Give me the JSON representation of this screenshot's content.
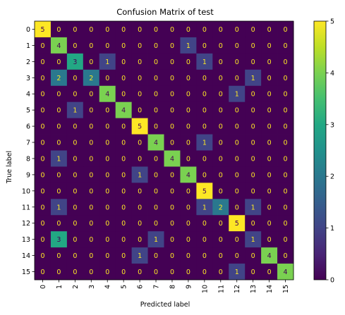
{
  "chart_data": {
    "type": "heatmap",
    "title": "Confusion Matrix of test",
    "xlabel": "Predicted label",
    "ylabel": "True label",
    "x_categories": [
      "0",
      "1",
      "2",
      "3",
      "4",
      "5",
      "6",
      "7",
      "8",
      "9",
      "10",
      "11",
      "12",
      "13",
      "14",
      "15"
    ],
    "y_categories": [
      "0",
      "1",
      "2",
      "3",
      "4",
      "5",
      "6",
      "7",
      "8",
      "9",
      "10",
      "11",
      "12",
      "13",
      "14",
      "15"
    ],
    "matrix": [
      [
        5,
        0,
        0,
        0,
        0,
        0,
        0,
        0,
        0,
        0,
        0,
        0,
        0,
        0,
        0,
        0
      ],
      [
        0,
        4,
        0,
        0,
        0,
        0,
        0,
        0,
        0,
        1,
        0,
        0,
        0,
        0,
        0,
        0
      ],
      [
        0,
        0,
        3,
        0,
        1,
        0,
        0,
        0,
        0,
        0,
        1,
        0,
        0,
        0,
        0,
        0
      ],
      [
        0,
        2,
        0,
        2,
        0,
        0,
        0,
        0,
        0,
        0,
        0,
        0,
        0,
        1,
        0,
        0
      ],
      [
        0,
        0,
        0,
        0,
        4,
        0,
        0,
        0,
        0,
        0,
        0,
        0,
        1,
        0,
        0,
        0
      ],
      [
        0,
        0,
        1,
        0,
        0,
        4,
        0,
        0,
        0,
        0,
        0,
        0,
        0,
        0,
        0,
        0
      ],
      [
        0,
        0,
        0,
        0,
        0,
        0,
        5,
        0,
        0,
        0,
        0,
        0,
        0,
        0,
        0,
        0
      ],
      [
        0,
        0,
        0,
        0,
        0,
        0,
        0,
        4,
        0,
        0,
        1,
        0,
        0,
        0,
        0,
        0
      ],
      [
        0,
        1,
        0,
        0,
        0,
        0,
        0,
        0,
        4,
        0,
        0,
        0,
        0,
        0,
        0,
        0
      ],
      [
        0,
        0,
        0,
        0,
        0,
        0,
        1,
        0,
        0,
        4,
        0,
        0,
        0,
        0,
        0,
        0
      ],
      [
        0,
        0,
        0,
        0,
        0,
        0,
        0,
        0,
        0,
        0,
        5,
        0,
        0,
        0,
        0,
        0
      ],
      [
        0,
        1,
        0,
        0,
        0,
        0,
        0,
        0,
        0,
        0,
        1,
        2,
        0,
        1,
        0,
        0
      ],
      [
        0,
        0,
        0,
        0,
        0,
        0,
        0,
        0,
        0,
        0,
        0,
        0,
        5,
        0,
        0,
        0
      ],
      [
        0,
        3,
        0,
        0,
        0,
        0,
        0,
        1,
        0,
        0,
        0,
        0,
        0,
        1,
        0,
        0
      ],
      [
        0,
        0,
        0,
        0,
        0,
        0,
        1,
        0,
        0,
        0,
        0,
        0,
        0,
        0,
        4,
        0
      ],
      [
        0,
        0,
        0,
        0,
        0,
        0,
        0,
        0,
        0,
        0,
        0,
        0,
        1,
        0,
        0,
        4
      ]
    ],
    "colorbar": {
      "min": 0,
      "max": 5,
      "ticks": [
        "0",
        "1",
        "2",
        "3",
        "4",
        "5"
      ]
    },
    "colormap": "viridis",
    "grid": false,
    "legend": "colorbar-right"
  },
  "colors": {
    "text_on_dark": "#fde725",
    "text_on_light": "#440154"
  }
}
